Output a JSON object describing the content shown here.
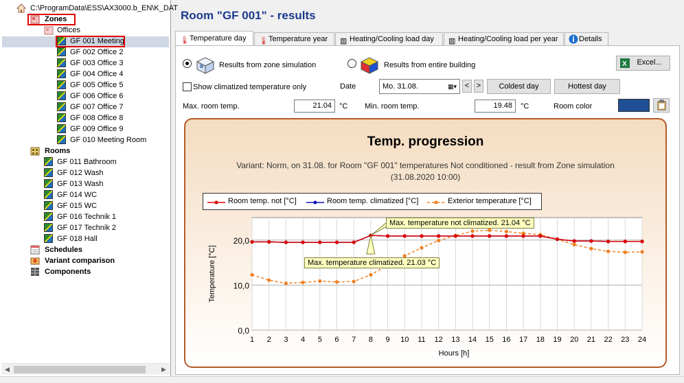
{
  "tree": {
    "path": "C:\\ProgramData\\ESS\\AX3000.b_EN\\K_DAT",
    "zones_label": "Zones",
    "offices_label": "Offices",
    "zones": [
      "GF 001 Meeting",
      "GF 002 Office 2",
      "GF 003 Office 3",
      "GF 004 Office 4",
      "GF 005 Office 5",
      "GF 006 Office 6",
      "GF 007 Office 7",
      "GF 008 Office 8",
      "GF 009 Office 9",
      "GF 010 Meeting Room"
    ],
    "rooms_label": "Rooms",
    "rooms": [
      "GF 011 Bathroom",
      "GF 012 Wash",
      "GF 013 Wash",
      "GF 014 WC",
      "GF 015 WC",
      "GF 016 Technik 1",
      "GF 017 Technik 2",
      "GF 018 Hall"
    ],
    "schedules_label": "Schedules",
    "variant_label": "Variant comparison",
    "components_label": "Components"
  },
  "header": {
    "title": "Room \"GF 001\" - results"
  },
  "tabs": [
    "Temperature day",
    "Temperature year",
    "Heating/Cooling load day",
    "Heating/Cooling load per year",
    "Details"
  ],
  "controls": {
    "zone_sim_label": "Results from zone simulation",
    "building_label": "Results from entire building",
    "excel_label": "Excel...",
    "climatized_only_label": "Show climatized temperature only",
    "date_label": "Date",
    "date_value": "Mo. 31.08.",
    "prev_label": "<",
    "next_label": ">",
    "coldest_label": "Coldest day",
    "hottest_label": "Hottest day",
    "max_temp_label": "Max. room temp.",
    "max_temp_value": "21.04",
    "max_unit": "°C",
    "min_temp_label": "Min. room temp.",
    "min_temp_value": "19.48",
    "min_unit": "°C",
    "room_color_label": "Room color",
    "room_color": "#1f4f94"
  },
  "chart_data": {
    "type": "line",
    "title": "Temp. progression",
    "subtitle_line1": "Variant: Norm, on 31.08. for Room \"GF 001\" temperatures Not conditioned - result from Zone simulation",
    "subtitle_line2": "(31.08.2020 10:00)",
    "xlabel": "Hours [h]",
    "ylabel": "Temperature [°C]",
    "x": [
      1,
      2,
      3,
      4,
      5,
      6,
      7,
      8,
      9,
      10,
      11,
      12,
      13,
      14,
      15,
      16,
      17,
      18,
      19,
      20,
      21,
      22,
      23,
      24
    ],
    "xlim": [
      1,
      24
    ],
    "ylim": [
      0,
      25
    ],
    "yticks": [
      "0,0",
      "10,0",
      "20,0"
    ],
    "ytick_values": [
      0,
      10,
      20
    ],
    "grid": true,
    "legend_position": "top-left",
    "series": [
      {
        "name": "Room temp. not  [°C]",
        "color": "#e00000",
        "dash": false,
        "values": [
          19.6,
          19.6,
          19.5,
          19.5,
          19.5,
          19.5,
          19.5,
          21.04,
          20.9,
          20.9,
          20.9,
          20.9,
          20.9,
          20.9,
          20.9,
          20.9,
          20.9,
          20.9,
          20.2,
          19.8,
          19.8,
          19.7,
          19.7,
          19.7
        ]
      },
      {
        "name": "Room temp. climatized [°C]",
        "color": "#1010c0",
        "dash": false,
        "values": [
          19.6,
          19.6,
          19.5,
          19.5,
          19.5,
          19.5,
          19.5,
          21.03,
          20.9,
          20.9,
          20.9,
          20.9,
          20.9,
          20.9,
          20.9,
          20.9,
          20.9,
          20.9,
          20.2,
          19.8,
          19.8,
          19.7,
          19.7,
          19.7
        ]
      },
      {
        "name": "Exterior temperature [°C]",
        "color": "#f08020",
        "dash": true,
        "values": [
          12.3,
          11.1,
          10.4,
          10.6,
          10.9,
          10.7,
          10.8,
          12.3,
          14.4,
          16.5,
          18.3,
          19.9,
          21.0,
          22.0,
          22.2,
          21.9,
          21.5,
          21.2,
          20.2,
          19.0,
          18.1,
          17.5,
          17.3,
          17.4
        ]
      }
    ],
    "annotations": [
      {
        "text": "Max. temperature not climatized. 21.04 °C",
        "x": 8,
        "y": 21.04
      },
      {
        "text": "Max. temperature climatized. 21.03 °C",
        "x": 8,
        "y": 21.03
      }
    ]
  }
}
